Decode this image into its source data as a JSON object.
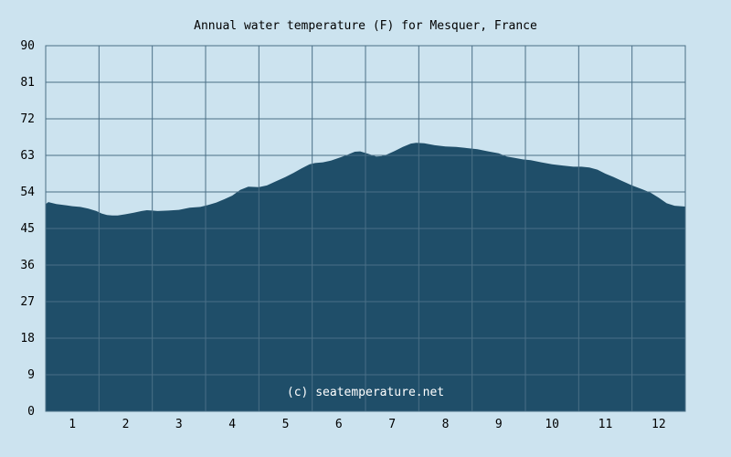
{
  "chart_data": {
    "type": "area",
    "title": "Annual water temperature (F) for Mesquer, France",
    "watermark": "(c) seatemperature.net",
    "xlabel": "",
    "ylabel": "",
    "ylim": [
      0,
      90
    ],
    "y_ticks": [
      0,
      9,
      18,
      27,
      36,
      45,
      54,
      63,
      72,
      81,
      90
    ],
    "xlim": [
      0.5,
      12.5
    ],
    "x_ticks": [
      1,
      2,
      3,
      4,
      5,
      6,
      7,
      8,
      9,
      10,
      11,
      12
    ],
    "grid": true,
    "legend": "none",
    "colors": {
      "background": "#cce3ef",
      "fill": "#1f4e69",
      "grid": "#4a6f86"
    },
    "series": [
      {
        "x": [
          0.5,
          0.55,
          0.7,
          0.9,
          1.0,
          1.15,
          1.3,
          1.45,
          1.55,
          1.65,
          1.75,
          1.85,
          2.0,
          2.15,
          2.3,
          2.4,
          2.5,
          2.6,
          2.8,
          3.0,
          3.2,
          3.4,
          3.55,
          3.7,
          3.85,
          4.0,
          4.15,
          4.3,
          4.5,
          4.65,
          4.8,
          5.0,
          5.15,
          5.3,
          5.45,
          5.55,
          5.7,
          5.85,
          6.0,
          6.15,
          6.3,
          6.4,
          6.55,
          6.7,
          6.8,
          6.9,
          7.05,
          7.2,
          7.35,
          7.45,
          7.6,
          7.8,
          8.0,
          8.2,
          8.4,
          8.6,
          8.8,
          9.0,
          9.15,
          9.3,
          9.45,
          9.6,
          9.8,
          10.0,
          10.2,
          10.4,
          10.55,
          10.7,
          10.85,
          11.0,
          11.15,
          11.3,
          11.5,
          11.7,
          11.85,
          12.0,
          12.15,
          12.3,
          12.5
        ],
        "y": [
          51.0,
          51.5,
          51.0,
          50.7,
          50.5,
          50.3,
          49.9,
          49.3,
          48.7,
          48.3,
          48.2,
          48.2,
          48.5,
          48.9,
          49.3,
          49.5,
          49.4,
          49.3,
          49.4,
          49.6,
          50.1,
          50.3,
          50.8,
          51.4,
          52.2,
          53.1,
          54.5,
          55.3,
          55.2,
          55.6,
          56.5,
          57.7,
          58.7,
          59.8,
          60.8,
          61.1,
          61.3,
          61.7,
          62.4,
          63.1,
          63.9,
          64.0,
          63.4,
          62.7,
          62.8,
          63.2,
          64.1,
          65.1,
          65.9,
          66.1,
          66.0,
          65.5,
          65.2,
          65.1,
          64.8,
          64.5,
          64.0,
          63.5,
          62.7,
          62.4,
          62.0,
          61.8,
          61.3,
          60.8,
          60.5,
          60.2,
          60.2,
          60.0,
          59.5,
          58.5,
          57.7,
          56.8,
          55.6,
          54.6,
          53.8,
          52.6,
          51.2,
          50.6,
          50.4
        ]
      }
    ]
  }
}
